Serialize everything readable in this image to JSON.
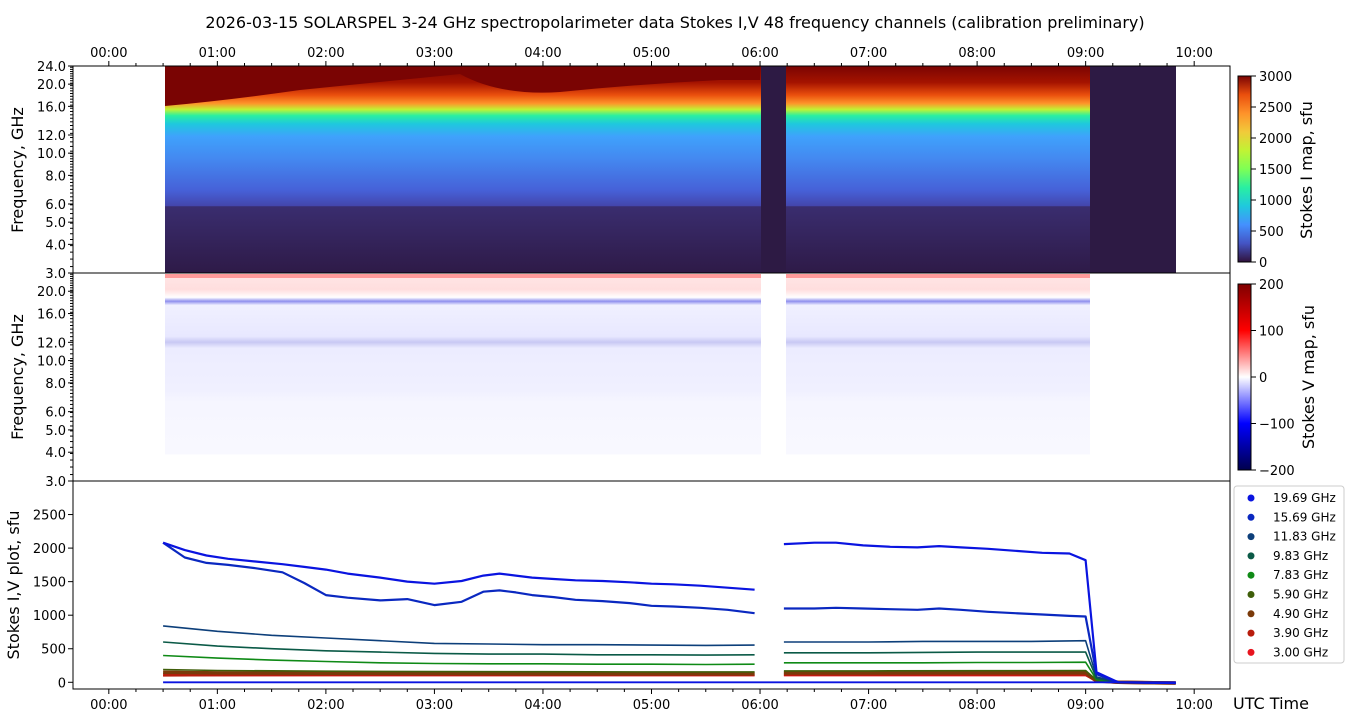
{
  "title": "2026-03-15  SOLARSPEL  3-24 GHz spectropolarimeter data   Stokes I,V   48 frequency channels   (calibration preliminary)",
  "time_ticks": [
    "00:00",
    "01:00",
    "02:00",
    "03:00",
    "04:00",
    "05:00",
    "06:00",
    "07:00",
    "08:00",
    "09:00",
    "10:00"
  ],
  "x_axis_label": "UTC Time",
  "colors": {
    "gap_fill": "#2d1a44",
    "stokes_v_neg": "#3b3bdc",
    "stokes_v_pos": "#e02020"
  },
  "chart_data": [
    {
      "type": "heatmap",
      "name": "stokes-i-map",
      "ylabel": "Frequency, GHz",
      "y_ticks": [
        "24.0",
        "20.0",
        "16.0",
        "12.0",
        "10.0",
        "8.0",
        "6.0",
        "5.0",
        "4.0",
        "3.0"
      ],
      "y_tick_values": [
        24,
        20,
        16,
        12,
        10,
        8,
        6,
        5,
        4,
        3
      ],
      "yscale": "log",
      "xlim_hours": [
        -0.33,
        10.33
      ],
      "ylim": [
        3,
        24
      ],
      "colorbar": {
        "label": "Stokes I map, sfu",
        "ticks": [
          "3000",
          "2500",
          "2000",
          "1500",
          "1000",
          "500",
          "0"
        ],
        "tick_values": [
          3000,
          2500,
          2000,
          1500,
          1000,
          500,
          0
        ],
        "range": [
          0,
          3000
        ],
        "colormap": "turbo"
      },
      "data_span_hours": [
        0.5,
        9.83
      ],
      "gaps_hours": [
        [
          6.0,
          6.22
        ],
        [
          9.05,
          9.83
        ]
      ]
    },
    {
      "type": "heatmap",
      "name": "stokes-v-map",
      "ylabel": "Frequency, GHz",
      "y_ticks": [
        "20.0",
        "16.0",
        "12.0",
        "10.0",
        "8.0",
        "6.0",
        "5.0",
        "4.0",
        "3.0"
      ],
      "y_tick_values": [
        20,
        16,
        12,
        10,
        8,
        6,
        5,
        4,
        3
      ],
      "yscale": "log",
      "ylim": [
        3,
        24
      ],
      "colorbar": {
        "label": "Stokes V map, sfu",
        "ticks": [
          "200",
          "100",
          "0",
          "−100",
          "−200"
        ],
        "tick_values": [
          200,
          100,
          0,
          -100,
          -200
        ],
        "range": [
          -200,
          200
        ],
        "colormap": "seismic"
      }
    },
    {
      "type": "line",
      "name": "stokes-iv-plot",
      "ylabel": "Stokes I,V plot, sfu",
      "xlabel": "UTC Time",
      "y_ticks": [
        "2500",
        "2000",
        "1500",
        "1000",
        "500",
        "0"
      ],
      "y_tick_values": [
        2500,
        2000,
        1500,
        1000,
        500,
        0
      ],
      "ylim": [
        -100,
        3000
      ],
      "legend_position": "right",
      "series": [
        {
          "name": "19.69 GHz",
          "color": "#0a14e0",
          "x": [
            0.5,
            0.7,
            0.9,
            1.1,
            1.35,
            1.6,
            1.8,
            2.0,
            2.2,
            2.5,
            2.75,
            3.0,
            3.25,
            3.45,
            3.6,
            3.75,
            3.9,
            4.1,
            4.3,
            4.55,
            4.8,
            5.0,
            5.2,
            5.45,
            5.7,
            5.95,
            6.22,
            6.5,
            6.7,
            6.95,
            7.2,
            7.45,
            7.65,
            7.85,
            8.1,
            8.35,
            8.6,
            8.85,
            9.0,
            9.1,
            9.3,
            9.83
          ],
          "y": [
            2080,
            1970,
            1890,
            1840,
            1800,
            1760,
            1720,
            1680,
            1620,
            1560,
            1500,
            1470,
            1510,
            1590,
            1620,
            1590,
            1560,
            1540,
            1520,
            1510,
            1490,
            1470,
            1460,
            1440,
            1410,
            1380,
            2060,
            2080,
            2080,
            2040,
            2020,
            2010,
            2030,
            2010,
            1990,
            1960,
            1930,
            1920,
            1820,
            150,
            0,
            -10
          ]
        },
        {
          "name": "15.69 GHz",
          "color": "#0a28c0",
          "x": [
            0.5,
            0.7,
            0.9,
            1.1,
            1.35,
            1.6,
            1.8,
            2.0,
            2.2,
            2.5,
            2.75,
            3.0,
            3.25,
            3.45,
            3.6,
            3.75,
            3.9,
            4.1,
            4.3,
            4.55,
            4.8,
            5.0,
            5.2,
            5.45,
            5.7,
            5.95,
            6.22,
            6.5,
            6.7,
            6.95,
            7.2,
            7.45,
            7.65,
            7.85,
            8.1,
            8.35,
            8.6,
            8.85,
            9.0,
            9.1,
            9.3,
            9.83
          ],
          "y": [
            2080,
            1860,
            1780,
            1750,
            1700,
            1640,
            1480,
            1300,
            1260,
            1220,
            1240,
            1150,
            1200,
            1350,
            1370,
            1340,
            1300,
            1270,
            1230,
            1210,
            1180,
            1140,
            1130,
            1110,
            1080,
            1030,
            1100,
            1100,
            1110,
            1100,
            1090,
            1080,
            1100,
            1080,
            1050,
            1030,
            1010,
            990,
            980,
            120,
            0,
            -10
          ]
        },
        {
          "name": "11.83 GHz",
          "color": "#0d3f7a",
          "x": [
            0.5,
            1.0,
            1.5,
            2.0,
            2.5,
            3.0,
            3.5,
            4.0,
            4.5,
            5.0,
            5.5,
            5.95,
            6.22,
            6.5,
            7.0,
            7.5,
            8.0,
            8.5,
            9.0,
            9.1,
            9.3,
            9.83
          ],
          "y": [
            840,
            760,
            700,
            660,
            620,
            580,
            570,
            560,
            560,
            555,
            550,
            555,
            600,
            600,
            600,
            610,
            610,
            610,
            620,
            80,
            0,
            -10
          ]
        },
        {
          "name": "9.83 GHz",
          "color": "#0b5a47",
          "x": [
            0.5,
            1.0,
            1.5,
            2.0,
            2.5,
            3.0,
            3.5,
            4.0,
            4.5,
            5.0,
            5.5,
            5.95,
            6.22,
            6.5,
            7.0,
            7.5,
            8.0,
            8.5,
            9.0,
            9.1,
            9.3,
            9.83
          ],
          "y": [
            600,
            540,
            500,
            470,
            450,
            430,
            420,
            420,
            410,
            410,
            405,
            410,
            440,
            440,
            440,
            445,
            450,
            450,
            450,
            60,
            0,
            -10
          ]
        },
        {
          "name": "7.83 GHz",
          "color": "#0f8a16",
          "x": [
            0.5,
            1.0,
            1.5,
            2.0,
            2.5,
            3.0,
            3.5,
            4.0,
            4.5,
            5.0,
            5.5,
            5.95,
            6.22,
            6.5,
            7.0,
            7.5,
            8.0,
            8.5,
            9.0,
            9.1,
            9.3,
            9.83
          ],
          "y": [
            400,
            360,
            330,
            310,
            290,
            280,
            275,
            275,
            270,
            270,
            265,
            270,
            290,
            290,
            290,
            290,
            295,
            295,
            300,
            40,
            0,
            -10
          ]
        },
        {
          "name": "5.90 GHz",
          "color": "#3f5e0a",
          "x": [
            0.5,
            1.0,
            2.0,
            3.0,
            4.0,
            5.0,
            5.95,
            6.22,
            7.0,
            8.0,
            9.0,
            9.1,
            9.3,
            9.83
          ],
          "y": [
            190,
            175,
            165,
            160,
            158,
            155,
            155,
            170,
            170,
            172,
            175,
            30,
            0,
            -10
          ]
        },
        {
          "name": "4.90 GHz",
          "color": "#7a3a0a",
          "x": [
            0.5,
            1.0,
            2.0,
            3.0,
            4.0,
            5.0,
            5.95,
            6.22,
            7.0,
            8.0,
            9.0,
            9.1,
            9.3,
            9.83
          ],
          "y": [
            150,
            140,
            135,
            132,
            130,
            130,
            130,
            140,
            140,
            142,
            145,
            25,
            0,
            -10
          ]
        },
        {
          "name": "3.90 GHz",
          "color": "#b81c0c",
          "x": [
            0.5,
            1.0,
            2.0,
            3.0,
            4.0,
            5.0,
            5.95,
            6.22,
            7.0,
            8.0,
            9.0,
            9.1,
            9.3,
            9.83
          ],
          "y": [
            110,
            115,
            118,
            118,
            118,
            118,
            118,
            122,
            122,
            124,
            125,
            20,
            0,
            -10
          ]
        },
        {
          "name": "3.00 GHz",
          "color": "#e8141e",
          "x": [
            0.5,
            1.0,
            2.0,
            3.0,
            4.0,
            5.0,
            5.95,
            6.22,
            7.0,
            8.0,
            9.0,
            9.1,
            9.3,
            9.83
          ],
          "y": [
            100,
            100,
            100,
            100,
            100,
            100,
            100,
            100,
            100,
            100,
            100,
            15,
            0,
            -10
          ]
        }
      ]
    }
  ]
}
